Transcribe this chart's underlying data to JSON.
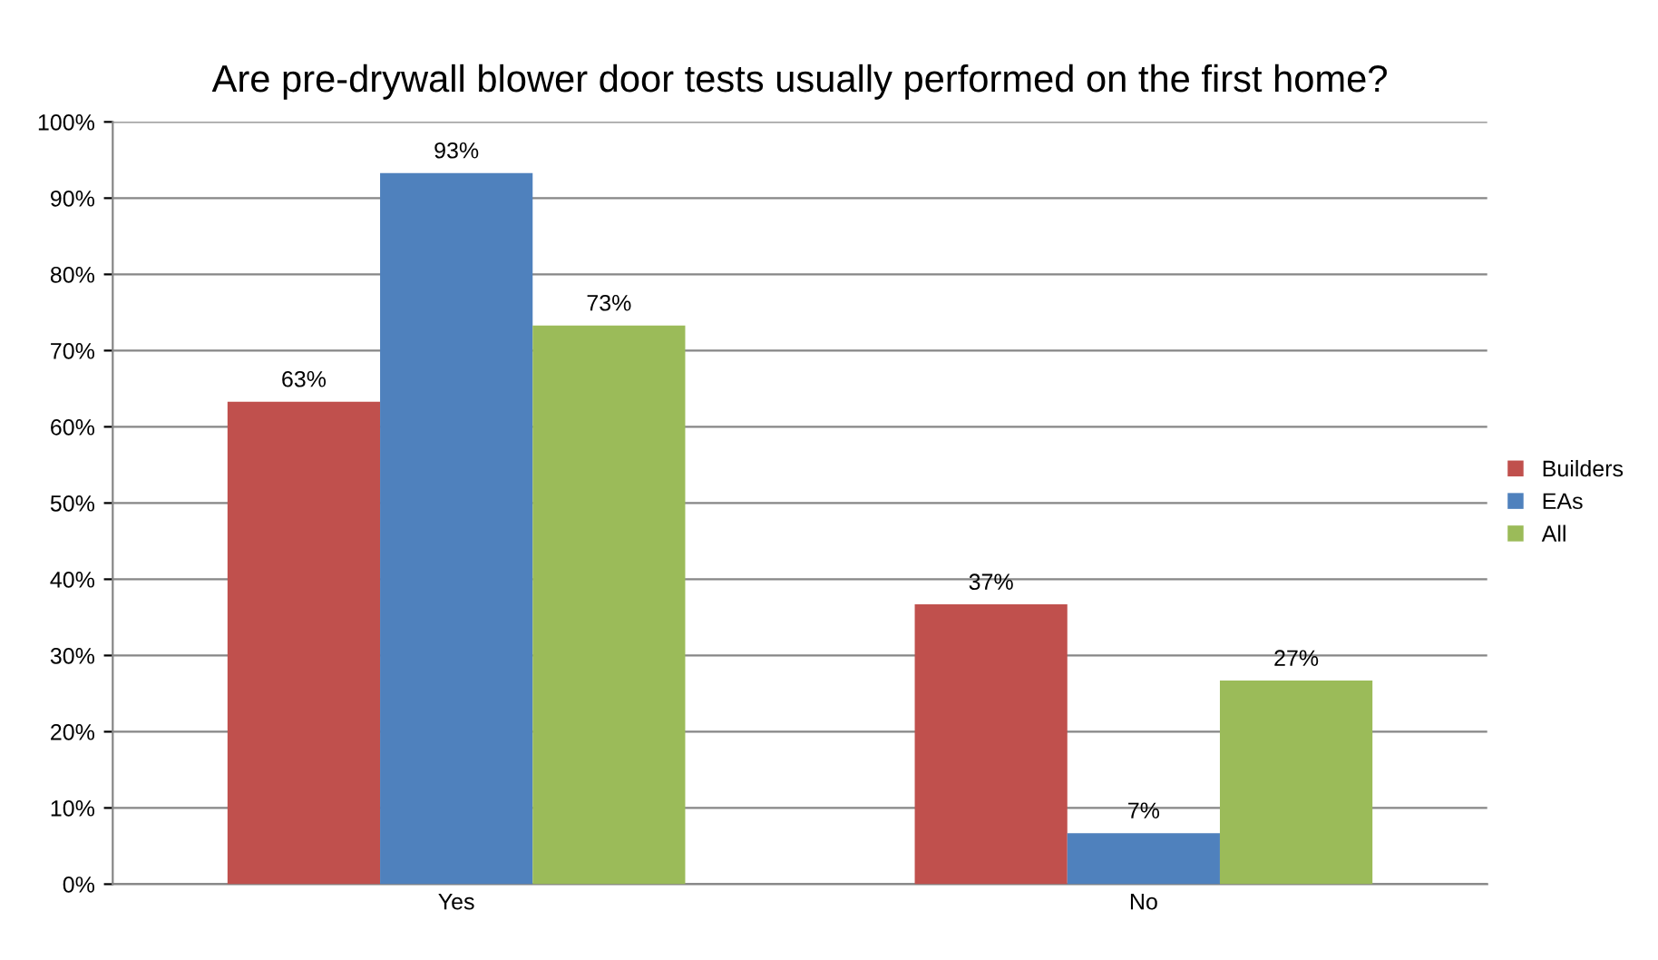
{
  "chart_data": {
    "type": "bar",
    "title": "Are pre-drywall blower door tests usually performed on the first home?",
    "categories": [
      "Yes",
      "No"
    ],
    "series": [
      {
        "name": "Builders",
        "color": "#c0504d",
        "values": [
          63.3,
          36.7
        ],
        "value_labels": [
          "63%",
          "37%"
        ]
      },
      {
        "name": "EAs",
        "color": "#4f81bd",
        "values": [
          93.3,
          6.7
        ],
        "value_labels": [
          "93%",
          "7%"
        ]
      },
      {
        "name": "All",
        "color": "#9bbb59",
        "values": [
          73.3,
          26.7
        ],
        "value_labels": [
          "73%",
          "27%"
        ]
      }
    ],
    "ylim": [
      0,
      100
    ],
    "yticks": [
      {
        "value": 0,
        "label": "0%"
      },
      {
        "value": 10,
        "label": "10%"
      },
      {
        "value": 20,
        "label": "20%"
      },
      {
        "value": 30,
        "label": "30%"
      },
      {
        "value": 40,
        "label": "40%"
      },
      {
        "value": 50,
        "label": "50%"
      },
      {
        "value": 60,
        "label": "60%"
      },
      {
        "value": 70,
        "label": "70%"
      },
      {
        "value": 80,
        "label": "80%"
      },
      {
        "value": 90,
        "label": "90%"
      },
      {
        "value": 100,
        "label": "100%"
      }
    ],
    "grid": "y",
    "legend": "right"
  }
}
